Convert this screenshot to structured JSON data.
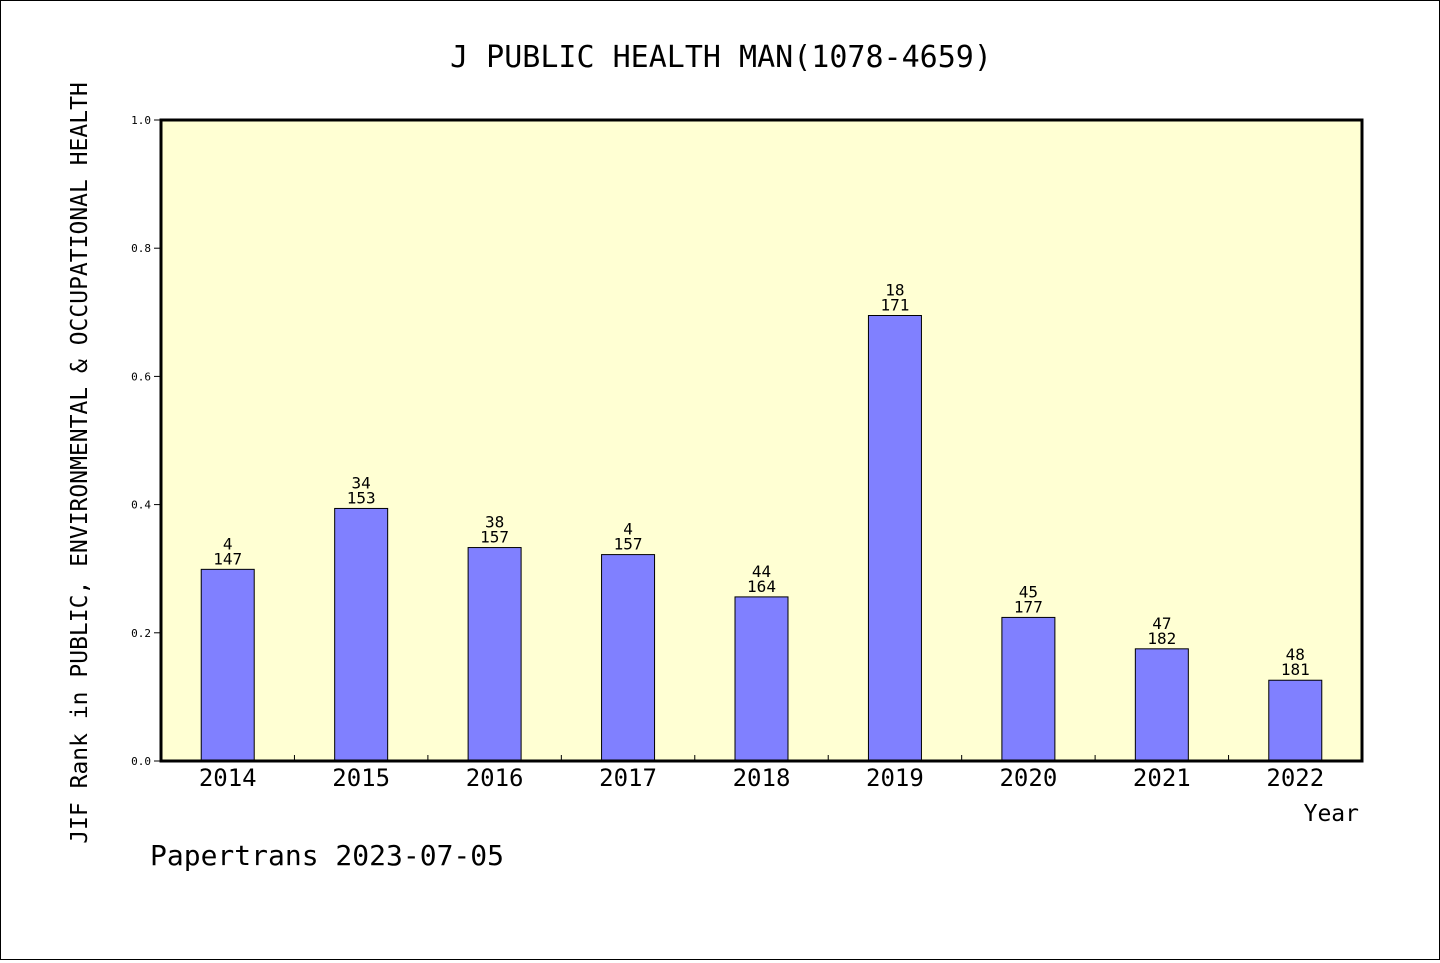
{
  "chart_data": {
    "type": "bar",
    "title": "J PUBLIC HEALTH MAN(1078-4659)",
    "xlabel": "Year",
    "ylabel": "JIF Rank in PUBLIC, ENVIRONMENTAL & OCCUPATIONAL HEALTH",
    "ylim": [
      0,
      1.0
    ],
    "yticks": [
      "0.0",
      "0.2",
      "0.4",
      "0.6",
      "0.8",
      "1.0"
    ],
    "categories": [
      "2014",
      "2015",
      "2016",
      "2017",
      "2018",
      "2019",
      "2020",
      "2021",
      "2022"
    ],
    "values": [
      0.299,
      0.394,
      0.333,
      0.322,
      0.256,
      0.695,
      0.224,
      0.175,
      0.126
    ],
    "rank": [
      "4",
      "34",
      "38",
      "4",
      "44",
      "18",
      "45",
      "47",
      "48"
    ],
    "total": [
      "147",
      "153",
      "157",
      "157",
      "164",
      "171",
      "177",
      "182",
      "181"
    ],
    "plot_background": "#ffffd3",
    "bar_color": "#8080ff",
    "grid": false,
    "legend": "none"
  },
  "footer": {
    "credit": "Papertrans 2023-07-05"
  }
}
